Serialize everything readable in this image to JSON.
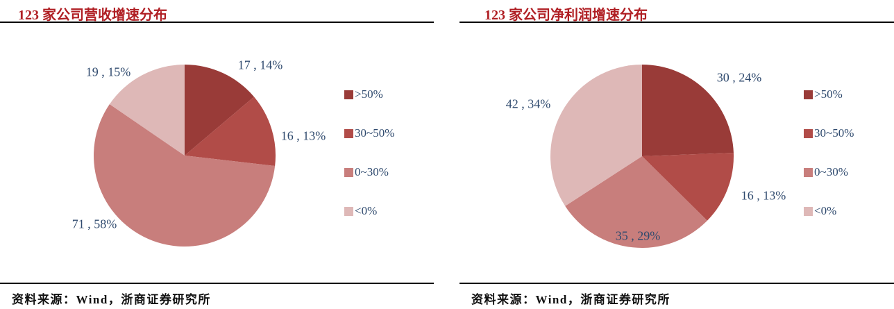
{
  "colors": {
    "title_red": "#B01F24",
    "label_navy": "#2F4A6E",
    "rule_black": "#000000"
  },
  "chart_data": [
    {
      "type": "pie",
      "title": "123 家公司营收增速分布",
      "categories": [
        ">50%",
        "30~50%",
        "0~30%",
        "<0%"
      ],
      "values": [
        17,
        16,
        71,
        19
      ],
      "percents": [
        "14%",
        "13%",
        "58%",
        "15%"
      ],
      "labels": [
        "17 , 14%",
        "16 , 13%",
        "71 , 58%",
        "19 , 15%"
      ],
      "colors": [
        "#993B38",
        "#B14C48",
        "#C87E7C",
        "#DEB8B7"
      ],
      "start_angle_deg": 0,
      "direction": "clockwise",
      "legend_position": "right",
      "source": "资料来源：Wind，浙商证券研究所"
    },
    {
      "type": "pie",
      "title": "123 家公司净利润增速分布",
      "categories": [
        ">50%",
        "30~50%",
        "0~30%",
        "<0%"
      ],
      "values": [
        30,
        16,
        35,
        42
      ],
      "percents": [
        "24%",
        "13%",
        "29%",
        "34%"
      ],
      "labels": [
        "30 , 24%",
        "16 , 13%",
        "35 , 29%",
        "42 , 34%"
      ],
      "colors": [
        "#993B38",
        "#B14C48",
        "#C87E7C",
        "#DEB8B7"
      ],
      "start_angle_deg": 0,
      "direction": "clockwise",
      "legend_position": "right",
      "source": "资料来源：Wind，浙商证券研究所"
    }
  ]
}
